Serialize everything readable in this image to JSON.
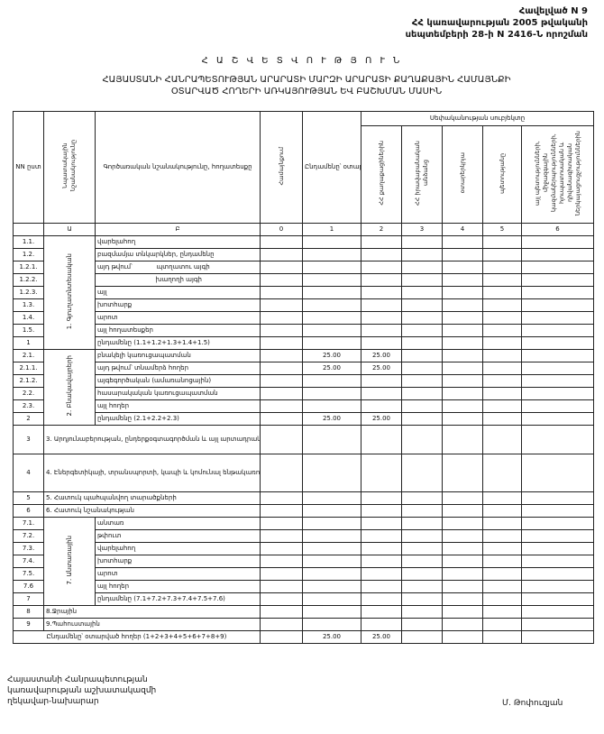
{
  "appendix": {
    "line1": "Հավելված N 9",
    "line2": "ՀՀ կառավարության 2005 թվականի",
    "line3": "սեպտեմբերի 28-ի N 2416-Ն որոշման"
  },
  "title": "Հ Ա Շ Վ Ե Տ Վ Ո Ւ Թ Յ Ո Ւ Ն",
  "subtitle_line1": "ՀԱՅԱՍՏԱՆԻ ՀԱՆՐԱՊԵՏՈՒԹՅԱՆ ԱՐԱՐԱՏԻ ՄԱՐԶԻ ԱՐԱՐԱՏԻ ՔԱՂԱՔԱՅԻՆ ՀԱՄԱՅՆՔԻ",
  "subtitle_line2": "ՕՏԱՐՎԱԾ ՀՈՂԵՐԻ ԱՌԿԱՅՈՒԹՅԱՆ ԵՎ ԲԱՇԽՄԱՆ ՄԱՍԻՆ",
  "table": {
    "headers": {
      "num": "NN ըստ",
      "purpose": "Նպատակային նշանակությունը",
      "function": "Գործառական նշանակությունը, հողատեսքը",
      "col0": "Համայնքում",
      "col1": "Ընդամենը՝ օտարված հողեր (2+3+4+5+6)",
      "ownership": "Սեփականության սուբյեկտը",
      "col2": "ՀՀ քաղաքացիներին",
      "col3": "ՀՀ իրավաբանական անձանց",
      "col4": "օտարերկրյա",
      "col5": "պետությանը",
      "col6": "այլ պետությունների, միջազգային կազմակերպությունների, հյուպատոսական և դիվանագիտական ներկայացուցչություններին"
    },
    "index": [
      "Ա",
      "Բ",
      "0",
      "1",
      "2",
      "3",
      "4",
      "5",
      "6"
    ],
    "sections": [
      {
        "type": "group",
        "group_label": "1. Գյուղատնտեսական",
        "rows": [
          {
            "num": "1.1.",
            "label": "վարելահող",
            "values": [
              "",
              "",
              "",
              "",
              "",
              "",
              ""
            ]
          },
          {
            "num": "1.2.",
            "label": "բազմամյա տնկարկներ, ընդամենը",
            "values": [
              "",
              "",
              "",
              "",
              "",
              "",
              ""
            ]
          },
          {
            "num": "1.2.1.",
            "label": "այդ թվում՝            պտղատու այգի",
            "values": [
              "",
              "",
              "",
              "",
              "",
              "",
              ""
            ]
          },
          {
            "num": "1.2.2.",
            "label": "                             խաղողի այգի",
            "values": [
              "",
              "",
              "",
              "",
              "",
              "",
              ""
            ]
          },
          {
            "num": "1.2.3.",
            "label": "այլ",
            "values": [
              "",
              "",
              "",
              "",
              "",
              "",
              ""
            ]
          },
          {
            "num": "1.3.",
            "label": "խոտհարք",
            "values": [
              "",
              "",
              "",
              "",
              "",
              "",
              ""
            ]
          },
          {
            "num": "1.4.",
            "label": "արոտ",
            "values": [
              "",
              "",
              "",
              "",
              "",
              "",
              ""
            ]
          },
          {
            "num": "1.5.",
            "label": "այլ հողատեսքեր",
            "values": [
              "",
              "",
              "",
              "",
              "",
              "",
              ""
            ]
          },
          {
            "num": "1",
            "label": "ընդամենը (1.1+1.2+1.3+1.4+1.5)",
            "values": [
              "",
              "",
              "",
              "",
              "",
              "",
              ""
            ]
          }
        ]
      },
      {
        "type": "group",
        "group_label": "2. Բնակավայրերի",
        "rows": [
          {
            "num": "2.1.",
            "label": "բնակելի կառուցապատման",
            "values": [
              "",
              "25.00",
              "25.00",
              "",
              "",
              "",
              ""
            ]
          },
          {
            "num": "2.1.1.",
            "label": "այդ թվում՝ տնամերձ հողեր",
            "values": [
              "",
              "25.00",
              "25.00",
              "",
              "",
              "",
              ""
            ]
          },
          {
            "num": "2.1.2.",
            "label": "այգեգործական (ամառանոցային)",
            "values": [
              "",
              "",
              "",
              "",
              "",
              "",
              ""
            ]
          },
          {
            "num": "2.2.",
            "label": "հասարակական կառուցապատման",
            "values": [
              "",
              "",
              "",
              "",
              "",
              "",
              ""
            ]
          },
          {
            "num": "2.3.",
            "label": "այլ հողեր",
            "values": [
              "",
              "",
              "",
              "",
              "",
              "",
              ""
            ]
          },
          {
            "num": "2",
            "label": "ընդամենը (2.1+2.2+2.3)",
            "values": [
              "",
              "25.00",
              "25.00",
              "",
              "",
              "",
              ""
            ]
          }
        ]
      },
      {
        "type": "single",
        "num": "3",
        "label": "3. Արդյունաբերության, ընդերքօգտագործման և այլ արտադրական նշանակության օբյեկտների",
        "tall": 32,
        "values": [
          "",
          "",
          "",
          "",
          "",
          "",
          ""
        ]
      },
      {
        "type": "single",
        "num": "4",
        "label": "4. Էներգետիկայի, տրանսպորտի, կապի և կոմունալ ենթակառուցվածքների օբյեկտների",
        "tall": 42,
        "values": [
          "",
          "",
          "",
          "",
          "",
          "",
          ""
        ]
      },
      {
        "type": "single",
        "num": "5",
        "label": "5. Հատուկ պահպանվող տարածքների",
        "values": [
          "",
          "",
          "",
          "",
          "",
          "",
          ""
        ]
      },
      {
        "type": "single",
        "num": "6",
        "label": "6. Հատուկ նշանակության",
        "values": [
          "",
          "",
          "",
          "",
          "",
          "",
          ""
        ]
      },
      {
        "type": "group",
        "group_label": "7. Անտառային",
        "rows": [
          {
            "num": "7.1.",
            "label": "անտառ",
            "values": [
              "",
              "",
              "",
              "",
              "",
              "",
              ""
            ]
          },
          {
            "num": "7.2.",
            "label": "թփուտ",
            "values": [
              "",
              "",
              "",
              "",
              "",
              "",
              ""
            ]
          },
          {
            "num": "7.3.",
            "label": "վարելահող",
            "values": [
              "",
              "",
              "",
              "",
              "",
              "",
              ""
            ]
          },
          {
            "num": "7.4.",
            "label": "խոտհարք",
            "values": [
              "",
              "",
              "",
              "",
              "",
              "",
              ""
            ]
          },
          {
            "num": "7.5.",
            "label": "արոտ",
            "values": [
              "",
              "",
              "",
              "",
              "",
              "",
              ""
            ]
          },
          {
            "num": "7.6",
            "label": "այլ հողեր",
            "values": [
              "",
              "",
              "",
              "",
              "",
              "",
              ""
            ]
          },
          {
            "num": "7",
            "label": "ընդամենը (7.1+7.2+7.3+7.4+7.5+7.6)",
            "values": [
              "",
              "",
              "",
              "",
              "",
              "",
              ""
            ]
          }
        ]
      },
      {
        "type": "single",
        "num": "8",
        "label": "8.Ջրային",
        "values": [
          "",
          "",
          "",
          "",
          "",
          "",
          ""
        ]
      },
      {
        "type": "single",
        "num": "9",
        "label": "9.Պահուստային",
        "values": [
          "",
          "",
          "",
          "",
          "",
          "",
          ""
        ]
      }
    ],
    "total": {
      "label": "Ընդամենը՝ օտարված հողեր (1+2+3+4+5+6+7+8+9)",
      "values": [
        "",
        "25.00",
        "25.00",
        "",
        "",
        "",
        ""
      ]
    }
  },
  "signer": {
    "line1": "Հայաստանի Հանրապետության",
    "line2": "կառավարության աշխատակազմի",
    "line3": "ղեկավար-նախարար",
    "name": "Մ. Թոփուզյան"
  }
}
